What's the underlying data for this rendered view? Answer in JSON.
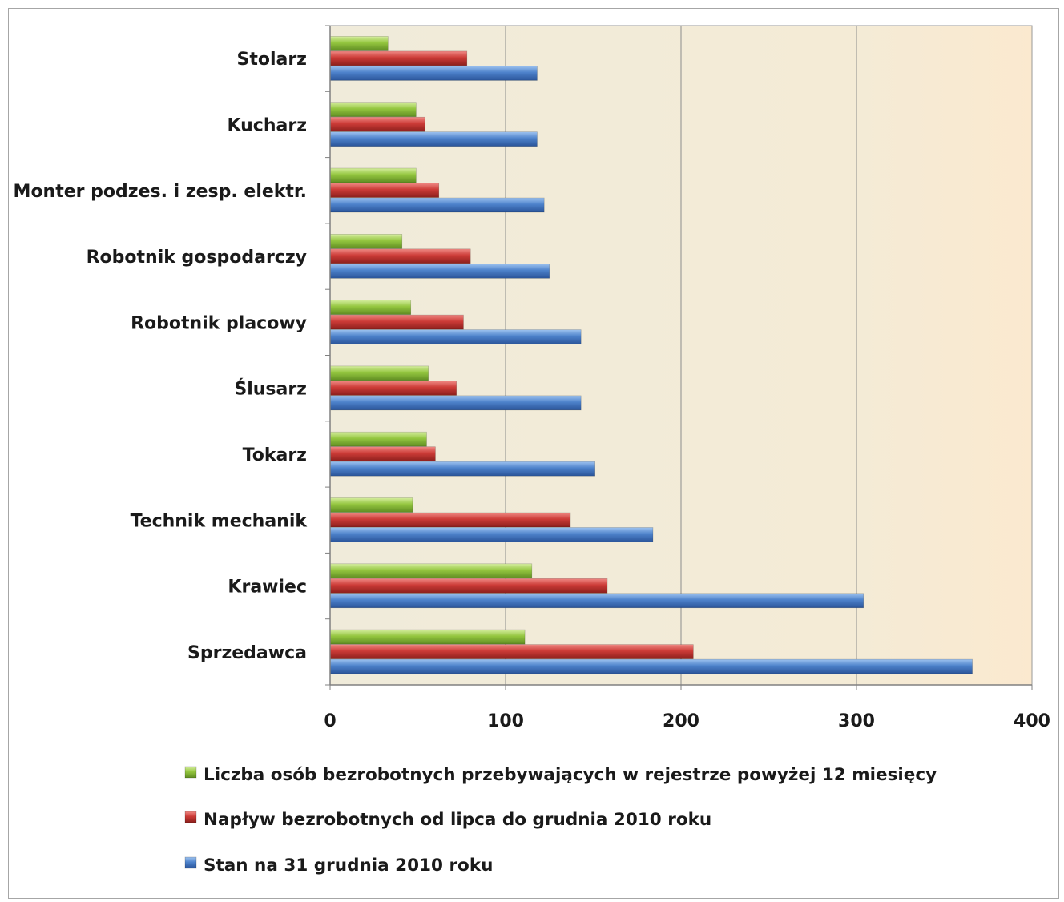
{
  "chart_data": {
    "type": "bar",
    "orientation": "horizontal",
    "title": "",
    "xlabel": "",
    "ylabel": "",
    "xlim": [
      0,
      400
    ],
    "ticks": [
      0,
      100,
      200,
      300,
      400
    ],
    "tick_labels": [
      "0",
      "100",
      "200",
      "300",
      "400"
    ],
    "grid": true,
    "legend_position": "bottom",
    "categories": [
      "Stolarz",
      "Kucharz",
      "Monter podzes. i zesp. elektr.",
      "Robotnik gospodarczy",
      "Robotnik placowy",
      "Ślusarz",
      "Tokarz",
      "Technik mechanik",
      "Krawiec",
      "Sprzedawca"
    ],
    "series": [
      {
        "name": "Liczba osób bezrobotnych przebywających w rejestrze powyżej 12 miesięcy",
        "color": "#8fc13c",
        "values": [
          33,
          49,
          49,
          41,
          46,
          56,
          55,
          47,
          115,
          111
        ]
      },
      {
        "name": "Napływ bezrobotnych od lipca do grudnia 2010 roku",
        "color": "#c23a38",
        "values": [
          78,
          54,
          62,
          80,
          76,
          72,
          60,
          137,
          158,
          207
        ]
      },
      {
        "name": "Stan na 31 grudnia 2010 roku",
        "color": "#4a7fc8",
        "values": [
          118,
          118,
          122,
          125,
          143,
          143,
          151,
          184,
          304,
          366
        ]
      }
    ]
  }
}
